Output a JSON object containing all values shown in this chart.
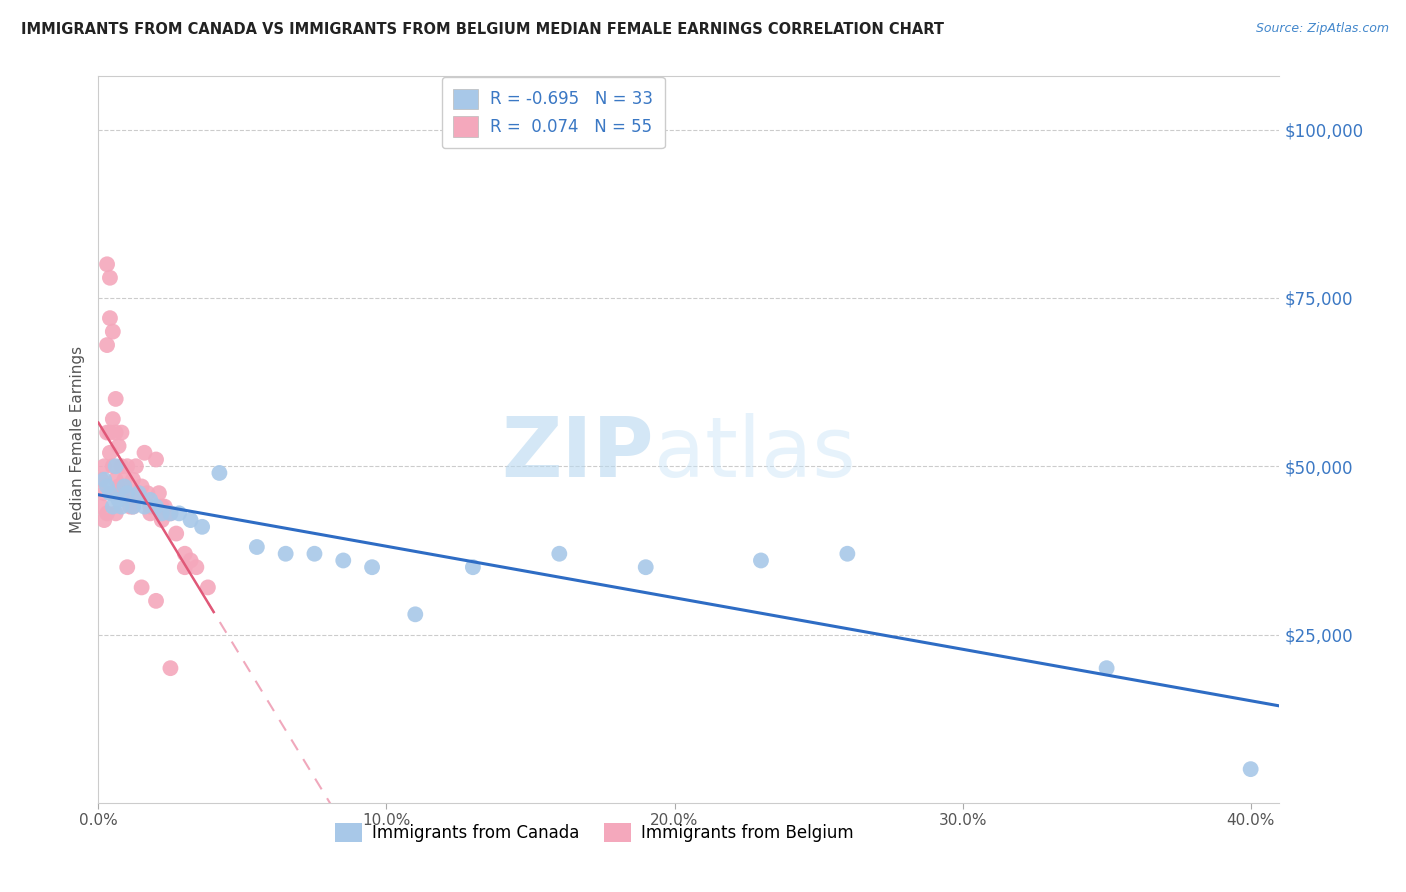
{
  "title": "IMMIGRANTS FROM CANADA VS IMMIGRANTS FROM BELGIUM MEDIAN FEMALE EARNINGS CORRELATION CHART",
  "source": "Source: ZipAtlas.com",
  "ylabel": "Median Female Earnings",
  "right_ytick_labels": [
    "$100,000",
    "$75,000",
    "$50,000",
    "$25,000"
  ],
  "right_ytick_vals": [
    100000,
    75000,
    50000,
    25000
  ],
  "legend_r_canada": "-0.695",
  "legend_n_canada": "33",
  "legend_r_belgium": "0.074",
  "legend_n_belgium": "55",
  "canada_color": "#a8c8e8",
  "belgium_color": "#f4a8bc",
  "canada_line_color": "#2e6cc4",
  "belgium_solid_color": "#e05878",
  "belgium_dash_color": "#f0a8bc",
  "xlim": [
    0.0,
    0.41
  ],
  "ylim": [
    0,
    108000
  ],
  "canada_x": [
    0.002,
    0.003,
    0.004,
    0.005,
    0.006,
    0.007,
    0.008,
    0.009,
    0.01,
    0.012,
    0.014,
    0.016,
    0.018,
    0.02,
    0.022,
    0.025,
    0.028,
    0.032,
    0.036,
    0.042,
    0.055,
    0.065,
    0.075,
    0.085,
    0.095,
    0.11,
    0.13,
    0.16,
    0.19,
    0.23,
    0.26,
    0.35,
    0.4
  ],
  "canada_y": [
    48000,
    47000,
    46000,
    44000,
    50000,
    45000,
    44000,
    47000,
    46000,
    44000,
    46000,
    44000,
    45000,
    44000,
    43000,
    43000,
    43000,
    42000,
    41000,
    49000,
    38000,
    37000,
    37000,
    36000,
    35000,
    28000,
    35000,
    37000,
    35000,
    36000,
    37000,
    20000,
    5000
  ],
  "belgium_x": [
    0.001,
    0.001,
    0.002,
    0.002,
    0.002,
    0.003,
    0.003,
    0.003,
    0.004,
    0.004,
    0.005,
    0.005,
    0.005,
    0.006,
    0.006,
    0.006,
    0.007,
    0.007,
    0.008,
    0.008,
    0.009,
    0.01,
    0.01,
    0.011,
    0.012,
    0.012,
    0.013,
    0.014,
    0.015,
    0.016,
    0.017,
    0.018,
    0.02,
    0.021,
    0.022,
    0.023,
    0.025,
    0.027,
    0.03,
    0.032,
    0.034,
    0.038,
    0.003,
    0.004,
    0.004,
    0.005,
    0.006,
    0.008,
    0.01,
    0.015,
    0.02,
    0.025,
    0.03,
    0.018,
    0.022
  ],
  "belgium_y": [
    48000,
    44000,
    50000,
    46000,
    42000,
    68000,
    55000,
    43000,
    55000,
    52000,
    57000,
    50000,
    46000,
    55000,
    48000,
    43000,
    53000,
    47000,
    50000,
    46000,
    48000,
    50000,
    46000,
    44000,
    48000,
    44000,
    50000,
    46000,
    47000,
    52000,
    46000,
    44000,
    51000,
    46000,
    42000,
    44000,
    43000,
    40000,
    37000,
    36000,
    35000,
    32000,
    80000,
    78000,
    72000,
    70000,
    60000,
    55000,
    35000,
    32000,
    30000,
    20000,
    35000,
    43000,
    44000
  ]
}
